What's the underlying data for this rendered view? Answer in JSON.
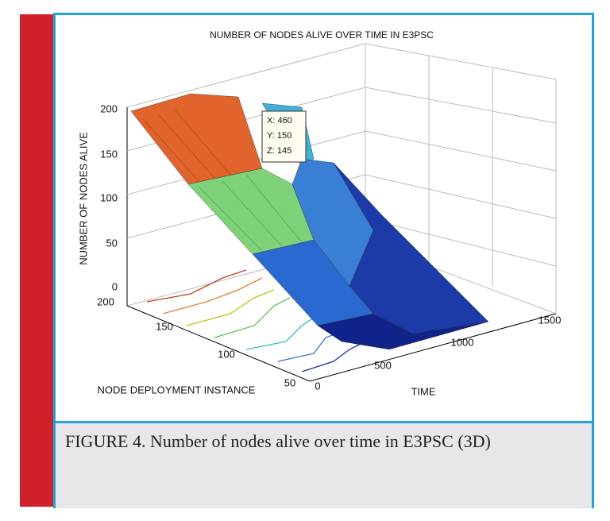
{
  "figure": {
    "title": "NUMBER OF NODES ALIVE OVER TIME IN E3PSC",
    "z_axis_label": "NUMBER OF NODES ALIVE",
    "y_axis_label": "NODE DEPLOYMENT INSTANCE",
    "x_axis_label": "TIME",
    "z_ticks": [
      "200",
      "150",
      "100",
      "50",
      "0"
    ],
    "y_ticks": [
      "200",
      "150",
      "100",
      "50"
    ],
    "x_ticks": [
      "0",
      "500",
      "1000",
      "1500"
    ],
    "datatip": [
      "X: 460",
      "Y: 150",
      "Z: 145"
    ]
  },
  "caption": "FIGURE 4. Number of nodes alive over time in E3PSC (3D)"
}
